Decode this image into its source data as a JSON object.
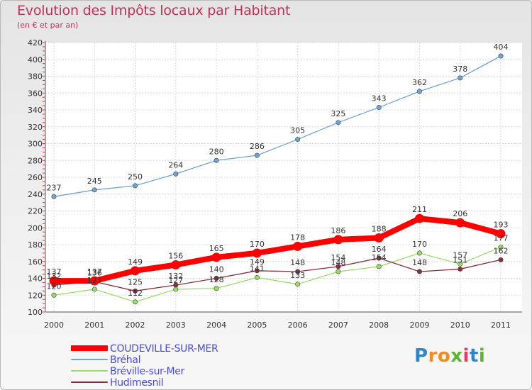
{
  "header": {
    "title": "Evolution des Impôts locaux par Habitant",
    "subtitle": "(en € et par an)"
  },
  "chart_data": {
    "type": "line",
    "title": "Evolution des Impôts locaux par Habitant",
    "subtitle": "(en € et par an)",
    "xlabel": "",
    "ylabel": "",
    "x": [
      "2000",
      "2001",
      "2002",
      "2003",
      "2004",
      "2005",
      "2006",
      "2007",
      "2008",
      "2009",
      "2010",
      "2011"
    ],
    "ylim": [
      100,
      420
    ],
    "yticks": [
      100,
      120,
      140,
      160,
      180,
      200,
      220,
      240,
      260,
      280,
      300,
      320,
      340,
      360,
      380,
      400,
      420
    ],
    "grid": true,
    "legend_position": "bottom-left",
    "series": [
      {
        "name": "COUDEVILLE-SUR-MER",
        "color": "#ff0000",
        "values": [
          137,
          137,
          149,
          156,
          165,
          170,
          178,
          186,
          188,
          211,
          206,
          193
        ],
        "labels": [
          "137",
          "137",
          "149",
          "156",
          "165",
          "170",
          "178",
          "186",
          "188",
          "211",
          "206",
          "193"
        ]
      },
      {
        "name": "Bréhal",
        "color": "#6fa4d6",
        "values": [
          237,
          245,
          250,
          264,
          280,
          286,
          305,
          325,
          343,
          362,
          378,
          404
        ],
        "labels": [
          "237",
          "245",
          "250",
          "264",
          "280",
          "286",
          "305",
          "325",
          "343",
          "362",
          "378",
          "404"
        ]
      },
      {
        "name": "Bréville-sur-Mer",
        "color": "#99dd66",
        "values": [
          120,
          127,
          112,
          127,
          128,
          141,
          133,
          148,
          154,
          170,
          157,
          177
        ],
        "labels": [
          "120",
          "127",
          "112",
          "127",
          "128",
          "141",
          "133",
          "148",
          "154",
          "170",
          "157",
          "177"
        ]
      },
      {
        "name": "Hudimesnil",
        "color": "#8b2e3b",
        "values": [
          132,
          136,
          125,
          132,
          140,
          149,
          148,
          154,
          164,
          148,
          151,
          162
        ],
        "labels": [
          "132",
          "136",
          "125",
          "132",
          "140",
          "149",
          "148",
          "154",
          "164",
          "148",
          "151",
          "162"
        ]
      }
    ]
  },
  "legend": {
    "items": [
      {
        "label": "COUDEVILLE-SUR-MER",
        "color": "#ff0000"
      },
      {
        "label": "Bréhal",
        "color": "#6fa4d6"
      },
      {
        "label": "Bréville-sur-Mer",
        "color": "#99dd66"
      },
      {
        "label": "Hudimesnil",
        "color": "#8b2e3b"
      }
    ]
  },
  "logo": {
    "letters": [
      "P",
      "r",
      "o",
      "x",
      "i",
      "t",
      "i"
    ],
    "colors": [
      "#2e86c9",
      "#f08c1e",
      "#f08c1e",
      "#5cb531",
      "#e23c6a",
      "#2e86c9",
      "#5cb531"
    ]
  }
}
